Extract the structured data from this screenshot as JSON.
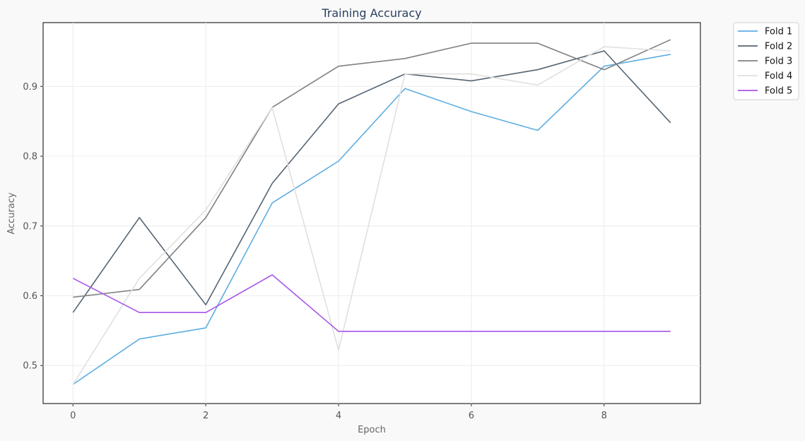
{
  "chart_data": {
    "type": "line",
    "title": "Training Accuracy",
    "xlabel": "Epoch",
    "ylabel": "Accuracy",
    "x": [
      0,
      1,
      2,
      3,
      4,
      5,
      6,
      7,
      8,
      9
    ],
    "xlim": [
      -0.45,
      9.45
    ],
    "ylim": [
      0.4455,
      0.9915
    ],
    "xticks": [
      0,
      2,
      4,
      6,
      8
    ],
    "yticks": [
      0.5,
      0.6,
      0.7,
      0.8,
      0.9
    ],
    "xtick_labels": [
      "0",
      "2",
      "4",
      "6",
      "8"
    ],
    "ytick_labels": [
      "0.5",
      "0.6",
      "0.7",
      "0.8",
      "0.9"
    ],
    "grid": true,
    "legend_position": "outside-top-right",
    "series": [
      {
        "name": "Fold 1",
        "color": "#5dade2",
        "values": [
          0.473,
          0.538,
          0.554,
          0.733,
          0.793,
          0.897,
          0.864,
          0.837,
          0.929,
          0.946
        ]
      },
      {
        "name": "Fold 2",
        "color": "#566573",
        "values": [
          0.576,
          0.712,
          0.587,
          0.761,
          0.875,
          0.918,
          0.908,
          0.924,
          0.951,
          0.848
        ]
      },
      {
        "name": "Fold 3",
        "color": "#808080",
        "values": [
          0.598,
          0.609,
          0.712,
          0.87,
          0.929,
          0.94,
          0.962,
          0.962,
          0.924,
          0.967
        ]
      },
      {
        "name": "Fold 4",
        "color": "#e0e0e0",
        "values": [
          0.473,
          0.625,
          0.723,
          0.87,
          0.522,
          0.918,
          0.918,
          0.902,
          0.957,
          0.951
        ]
      },
      {
        "name": "Fold 5",
        "color": "#a855e8",
        "values": [
          0.625,
          0.576,
          0.576,
          0.63,
          0.549,
          0.549,
          0.549,
          0.549,
          0.549,
          0.549
        ]
      }
    ]
  }
}
